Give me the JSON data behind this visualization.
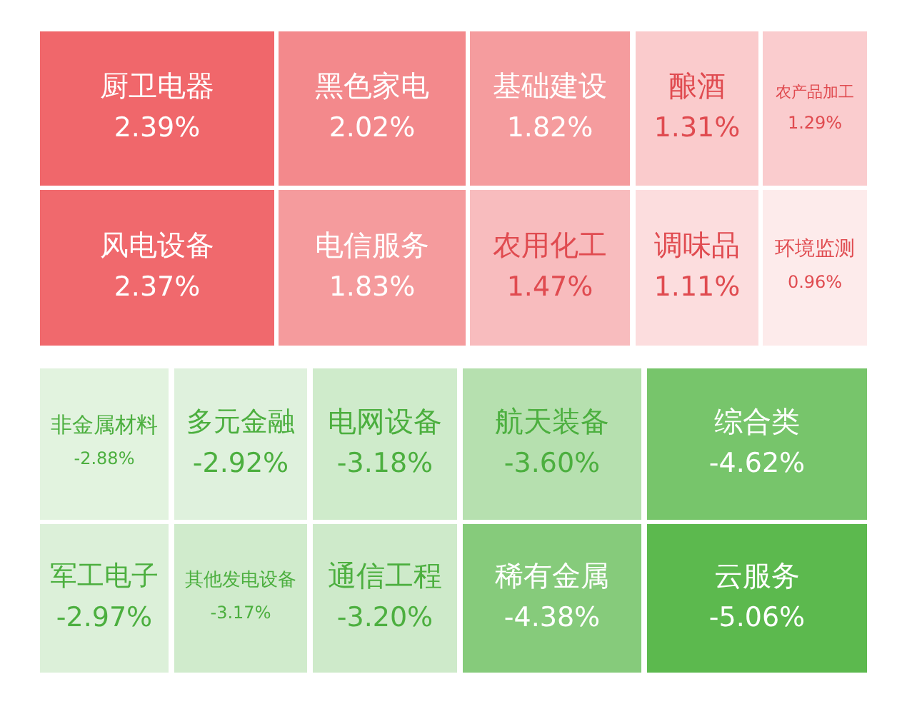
{
  "chart_data": {
    "type": "other",
    "categories": [
      "厨卫电器",
      "黑色家电",
      "基础建设",
      "酿酒",
      "农产品加工",
      "风电设备",
      "电信服务",
      "农用化工",
      "调味品",
      "环境监测",
      "非金属材料",
      "多元金融",
      "电网设备",
      "航天装备",
      "综合类",
      "军工电子",
      "其他发电设备",
      "通信工程",
      "稀有金属",
      "云服务"
    ],
    "values": [
      2.39,
      2.02,
      1.82,
      1.31,
      1.29,
      2.37,
      1.83,
      1.47,
      1.11,
      0.96,
      -2.88,
      -2.92,
      -3.18,
      -3.6,
      -4.62,
      -2.97,
      -3.17,
      -3.2,
      -4.38,
      -5.06
    ],
    "value_labels": [
      "2.39%",
      "2.02%",
      "1.82%",
      "1.31%",
      "1.29%",
      "2.37%",
      "1.83%",
      "1.47%",
      "1.11%",
      "0.96%",
      "-2.88%",
      "-2.92%",
      "-3.18%",
      "-3.60%",
      "-4.62%",
      "-2.97%",
      "-3.17%",
      "-3.20%",
      "-4.38%",
      "-5.06%"
    ]
  }
}
